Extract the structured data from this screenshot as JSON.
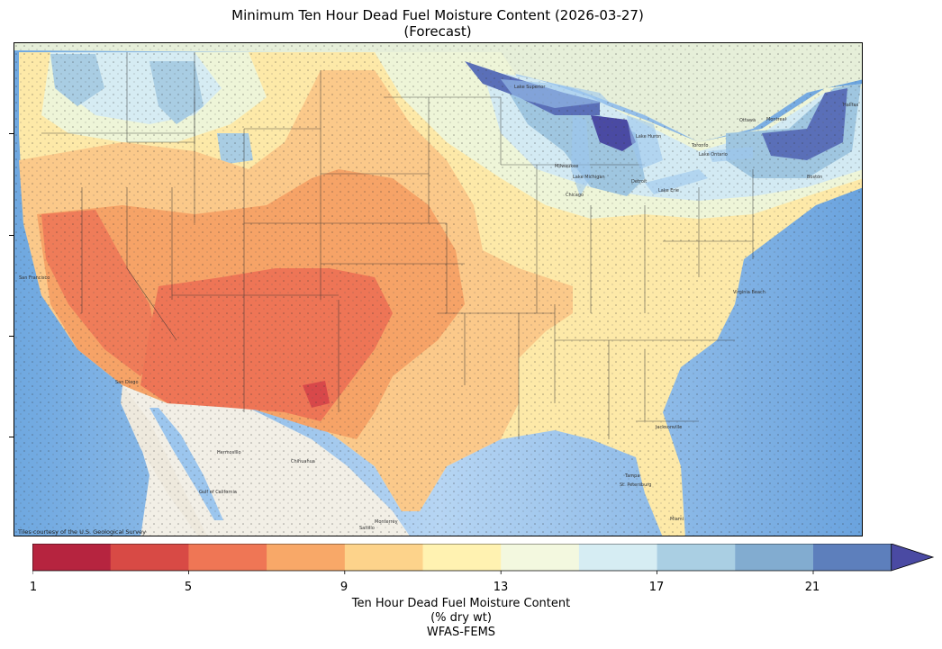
{
  "title_line1": "Minimum Ten Hour Dead Fuel Moisture Content (2026-03-27)",
  "title_line2": "(Forecast)",
  "colorbar": {
    "colors": [
      "#b6243f",
      "#d84a45",
      "#ef7655",
      "#f8a868",
      "#fdd38b",
      "#fff2b1",
      "#f3f8df",
      "#d6edf3",
      "#aacfe3",
      "#82acd0",
      "#5d7fbc",
      "#4a4aa3"
    ],
    "tick_labels": [
      "1",
      "5",
      "9",
      "13",
      "17",
      "21"
    ],
    "label_line1": "Ten Hour Dead Fuel Moisture Content",
    "label_line2": "(% dry wt)",
    "label_line3": "WFAS-FEMS"
  },
  "credit": "Tiles courtesy of the U.S. Geological Survey",
  "map_labels": {
    "lake_superior": "Lake Superior",
    "lake_michigan": "Lake Michigan",
    "lake_huron": "Lake Huron",
    "lake_erie": "Lake Erie",
    "lake_ontario": "Lake Ontario",
    "milwaukee": "Milwaukee",
    "chicago": "Chicago",
    "detroit": "Detroit",
    "ottawa": "Ottawa",
    "montreal": "Montreal",
    "toronto": "Toronto",
    "san_francisco": "San Francisco",
    "san_diego": "San Diego",
    "hermosillo": "Hermosillo",
    "chihuahua": "Chihuahua",
    "gulf_of_california": "Gulf of California",
    "monterrey": "Monterrey",
    "saltillo": "Saltillo",
    "jacksonville": "Jacksonville",
    "tampa": "Tampa",
    "st_petersburg": "St. Petersburg",
    "miami": "Miami",
    "virginia_beach": "Virginia Beach",
    "boston": "Boston",
    "halifax": "Halifax"
  }
}
